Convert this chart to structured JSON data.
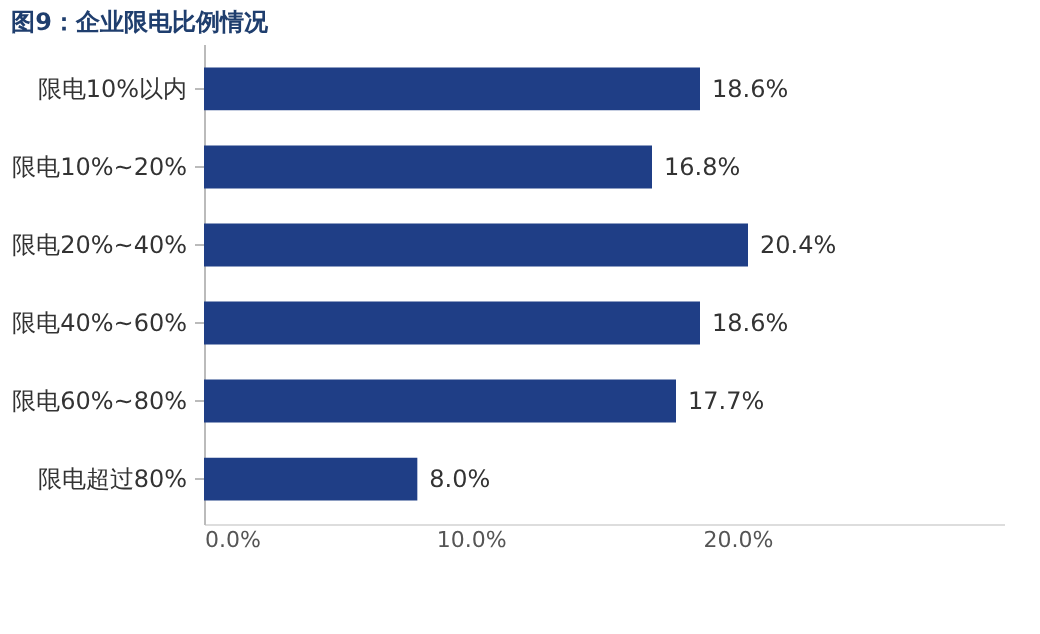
{
  "chart_data": {
    "type": "bar",
    "orientation": "horizontal",
    "title": "图9：企业限电比例情况",
    "categories": [
      "限电10%以内",
      "限电10%~20%",
      "限电20%~40%",
      "限电40%~60%",
      "限电60%~80%",
      "限电超过80%"
    ],
    "values": [
      18.6,
      16.8,
      20.4,
      18.6,
      17.7,
      8.0
    ],
    "value_labels": [
      "18.6%",
      "16.8%",
      "20.4%",
      "18.6%",
      "17.7%",
      "8.0%"
    ],
    "color": "#1f3e86",
    "xlim": [
      0,
      30
    ],
    "xticks": [
      {
        "value": 0,
        "label": "0.0%"
      },
      {
        "value": 10,
        "label": "10.0%"
      },
      {
        "value": 20,
        "label": "20.0%"
      }
    ],
    "grid": false
  }
}
